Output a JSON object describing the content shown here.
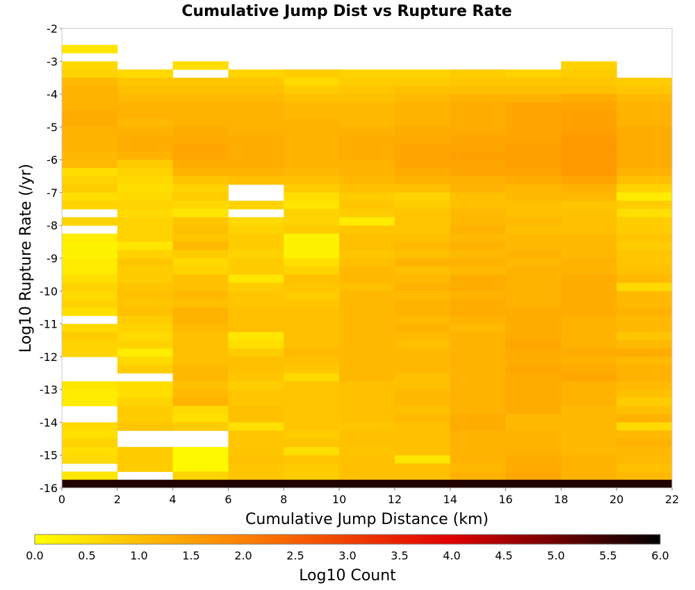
{
  "chart_data": {
    "type": "heatmap",
    "title": "Cumulative Jump Dist vs Rupture Rate",
    "xlabel": "Cumulative Jump Distance (km)",
    "ylabel": "Log10 Rupture Rate (/yr)",
    "xlim": [
      0,
      22
    ],
    "ylim": [
      -16,
      -2
    ],
    "x_bin_width": 2,
    "y_bin_width": 0.25,
    "x_ticks": [
      "0",
      "2",
      "4",
      "6",
      "8",
      "10",
      "12",
      "14",
      "16",
      "18",
      "20",
      "22"
    ],
    "y_ticks": [
      "-2",
      "-3",
      "-4",
      "-5",
      "-6",
      "-7",
      "-8",
      "-9",
      "-10",
      "-11",
      "-12",
      "-13",
      "-14",
      "-15",
      "-16"
    ],
    "colorbar": {
      "label": "Log10 Count",
      "min": 0.0,
      "max": 6.0,
      "ticks": [
        "0.0",
        "0.5",
        "1.0",
        "1.5",
        "2.0",
        "2.5",
        "3.0",
        "3.5",
        "4.0",
        "4.5",
        "5.0",
        "5.5",
        "6.0"
      ],
      "colors": [
        "#ffff00",
        "#ff8000",
        "#e00000",
        "#000000"
      ]
    },
    "x_bin_starts": [
      0,
      2,
      4,
      6,
      8,
      10,
      12,
      14,
      16,
      18,
      20
    ],
    "row_y_starts": [
      -2.75,
      -3.25,
      -3.5,
      -3.75,
      -4.0,
      -4.25,
      -4.5,
      -4.75,
      -5.0,
      -5.25,
      -5.5,
      -5.75,
      -6.0,
      -6.25,
      -6.5,
      -6.75,
      -7.0,
      -7.25,
      -7.5,
      -7.75,
      -8.0,
      -8.25,
      -8.5,
      -8.75,
      -9.0,
      -9.25,
      -9.5,
      -9.75,
      -10.0,
      -10.25,
      -10.5,
      -10.75,
      -11.0,
      -11.25,
      -11.5,
      -11.75,
      -12.0,
      -12.25,
      -12.5,
      -12.75,
      -13.0,
      -13.25,
      -13.5,
      -13.75,
      -14.0,
      -14.25,
      -14.5,
      -14.75,
      -15.0,
      -15.25,
      -15.5,
      -15.75,
      -16.0
    ],
    "counts_log10": [
      [
        0.4,
        null,
        null,
        null,
        null,
        null,
        null,
        null,
        null,
        null,
        null
      ],
      [
        0.6,
        null,
        0.5,
        null,
        null,
        null,
        null,
        null,
        null,
        0.7,
        null
      ],
      [
        0.7,
        0.6,
        null,
        0.7,
        0.8,
        0.7,
        0.7,
        0.8,
        0.7,
        0.8,
        null
      ],
      [
        1.1,
        0.9,
        0.9,
        0.9,
        0.6,
        0.8,
        0.8,
        0.9,
        0.9,
        0.9,
        0.8
      ],
      [
        1.2,
        1.0,
        1.0,
        1.0,
        0.8,
        0.9,
        1.0,
        1.0,
        1.0,
        1.0,
        0.9
      ],
      [
        1.2,
        1.1,
        1.1,
        1.1,
        1.0,
        1.0,
        1.1,
        1.2,
        1.2,
        1.3,
        1.1
      ],
      [
        1.2,
        1.2,
        1.2,
        1.2,
        1.1,
        1.1,
        1.2,
        1.3,
        1.4,
        1.4,
        1.2
      ],
      [
        1.3,
        1.2,
        1.2,
        1.2,
        1.1,
        1.1,
        1.2,
        1.3,
        1.4,
        1.5,
        1.2
      ],
      [
        1.3,
        1.1,
        1.2,
        1.2,
        1.2,
        1.1,
        1.2,
        1.3,
        1.4,
        1.5,
        1.2
      ],
      [
        1.2,
        1.2,
        1.3,
        1.2,
        1.2,
        1.2,
        1.3,
        1.3,
        1.4,
        1.5,
        1.3
      ],
      [
        1.2,
        1.3,
        1.3,
        1.3,
        1.2,
        1.3,
        1.3,
        1.4,
        1.4,
        1.6,
        1.3
      ],
      [
        1.2,
        1.3,
        1.4,
        1.3,
        1.2,
        1.3,
        1.4,
        1.4,
        1.5,
        1.6,
        1.3
      ],
      [
        1.1,
        1.2,
        1.4,
        1.3,
        1.2,
        1.3,
        1.4,
        1.5,
        1.5,
        1.6,
        1.3
      ],
      [
        1.1,
        0.8,
        1.3,
        1.3,
        1.2,
        1.2,
        1.4,
        1.4,
        1.5,
        1.6,
        1.3
      ],
      [
        0.5,
        0.7,
        1.2,
        1.2,
        1.1,
        1.2,
        1.3,
        1.4,
        1.4,
        1.6,
        1.2
      ],
      [
        0.7,
        0.6,
        0.9,
        1.0,
        1.0,
        1.1,
        1.2,
        1.2,
        1.3,
        1.4,
        1.0
      ],
      [
        0.8,
        0.5,
        0.7,
        null,
        0.8,
        1.0,
        1.0,
        1.2,
        1.1,
        1.2,
        0.7
      ],
      [
        0.5,
        0.6,
        0.8,
        null,
        0.5,
        0.8,
        0.7,
        1.0,
        1.1,
        1.1,
        0.3
      ],
      [
        0.7,
        0.7,
        0.6,
        0.7,
        0.4,
        0.9,
        0.8,
        1.0,
        1.0,
        0.9,
        0.8
      ],
      [
        null,
        0.6,
        0.4,
        null,
        0.7,
        0.8,
        0.9,
        1.1,
        1.0,
        1.0,
        0.5
      ],
      [
        0.7,
        0.7,
        0.9,
        0.6,
        0.7,
        0.3,
        0.9,
        1.1,
        1.1,
        1.0,
        0.8
      ],
      [
        null,
        0.7,
        1.0,
        0.7,
        0.8,
        0.9,
        0.9,
        1.2,
        1.0,
        1.0,
        0.8
      ],
      [
        0.3,
        0.7,
        0.9,
        0.8,
        0.2,
        1.0,
        1.0,
        1.1,
        1.1,
        1.1,
        0.9
      ],
      [
        0.2,
        0.4,
        1.1,
        0.8,
        0.2,
        1.0,
        1.1,
        1.2,
        1.1,
        1.1,
        0.8
      ],
      [
        0.2,
        0.7,
        0.8,
        0.7,
        0.2,
        0.9,
        1.0,
        1.1,
        1.2,
        1.1,
        0.9
      ],
      [
        0.3,
        0.9,
        0.6,
        0.8,
        0.5,
        1.0,
        1.2,
        1.2,
        1.1,
        1.2,
        0.9
      ],
      [
        0.3,
        0.8,
        0.7,
        0.8,
        0.7,
        1.1,
        1.0,
        1.1,
        1.2,
        1.2,
        1.0
      ],
      [
        0.5,
        0.8,
        1.0,
        0.4,
        1.0,
        1.1,
        1.1,
        1.3,
        1.2,
        1.3,
        1.1
      ],
      [
        0.7,
        0.9,
        1.0,
        0.8,
        0.9,
        1.0,
        1.2,
        1.3,
        1.2,
        1.3,
        0.6
      ],
      [
        0.6,
        1.0,
        1.1,
        0.9,
        0.8,
        1.1,
        1.1,
        1.2,
        1.2,
        1.3,
        1.1
      ],
      [
        0.7,
        0.9,
        1.0,
        0.9,
        0.9,
        1.1,
        1.2,
        1.3,
        1.2,
        1.3,
        1.1
      ],
      [
        0.5,
        1.0,
        1.2,
        1.0,
        1.0,
        1.1,
        1.2,
        1.3,
        1.3,
        1.3,
        1.2
      ],
      [
        null,
        0.8,
        1.2,
        1.0,
        1.0,
        1.1,
        1.1,
        1.2,
        1.3,
        1.2,
        1.1
      ],
      [
        0.6,
        0.7,
        1.1,
        1.0,
        1.0,
        1.1,
        1.2,
        1.1,
        1.3,
        1.2,
        1.1
      ],
      [
        0.8,
        0.6,
        1.0,
        0.4,
        1.0,
        1.1,
        1.1,
        1.2,
        1.3,
        1.2,
        0.9
      ],
      [
        0.7,
        0.7,
        1.0,
        0.5,
        1.0,
        1.1,
        1.0,
        1.2,
        1.4,
        1.2,
        1.1
      ],
      [
        0.7,
        0.3,
        1.0,
        0.8,
        1.1,
        1.1,
        1.1,
        1.2,
        1.3,
        1.3,
        1.3
      ],
      [
        null,
        0.6,
        1.0,
        1.0,
        1.0,
        1.1,
        1.1,
        1.2,
        1.3,
        1.2,
        1.1
      ],
      [
        null,
        0.8,
        1.1,
        1.0,
        0.9,
        1.1,
        1.1,
        1.2,
        1.4,
        1.3,
        1.2
      ],
      [
        null,
        null,
        1.1,
        0.9,
        0.6,
        1.1,
        1.0,
        1.2,
        1.3,
        1.4,
        1.2
      ],
      [
        0.4,
        0.5,
        1.0,
        0.8,
        0.9,
        1.0,
        1.0,
        1.2,
        1.3,
        1.2,
        1.1
      ],
      [
        0.3,
        0.5,
        1.1,
        0.9,
        0.9,
        1.0,
        1.1,
        1.2,
        1.3,
        1.2,
        1.0
      ],
      [
        0.3,
        0.7,
        1.2,
        0.9,
        0.9,
        1.0,
        1.1,
        1.2,
        1.3,
        1.2,
        0.8
      ],
      [
        null,
        0.8,
        0.6,
        1.0,
        0.9,
        1.0,
        1.0,
        1.2,
        1.3,
        1.1,
        1.0
      ],
      [
        null,
        0.8,
        0.5,
        1.0,
        0.9,
        1.0,
        1.1,
        1.3,
        1.1,
        1.1,
        1.2
      ],
      [
        0.6,
        0.9,
        0.8,
        0.5,
        0.9,
        0.9,
        1.0,
        1.3,
        1.1,
        1.1,
        0.6
      ],
      [
        0.5,
        null,
        null,
        0.9,
        0.8,
        1.0,
        1.0,
        1.2,
        1.2,
        1.1,
        1.1
      ],
      [
        0.7,
        null,
        null,
        0.9,
        0.9,
        1.0,
        1.0,
        1.2,
        1.2,
        1.1,
        1.2
      ],
      [
        0.5,
        0.8,
        0.1,
        0.9,
        0.5,
        0.9,
        1.0,
        1.2,
        1.2,
        1.1,
        1.1
      ],
      [
        0.6,
        0.8,
        0.1,
        1.0,
        0.9,
        1.0,
        0.4,
        1.2,
        1.3,
        1.2,
        1.1
      ],
      [
        null,
        0.8,
        0.1,
        0.9,
        0.8,
        1.0,
        1.0,
        1.1,
        1.3,
        1.2,
        1.0
      ],
      [
        0.4,
        null,
        0.7,
        0.9,
        0.8,
        1.0,
        1.0,
        1.2,
        1.4,
        1.2,
        1.1
      ],
      [
        5.7,
        5.7,
        5.7,
        5.7,
        5.7,
        5.7,
        5.7,
        5.7,
        5.7,
        5.7,
        5.7
      ]
    ]
  }
}
